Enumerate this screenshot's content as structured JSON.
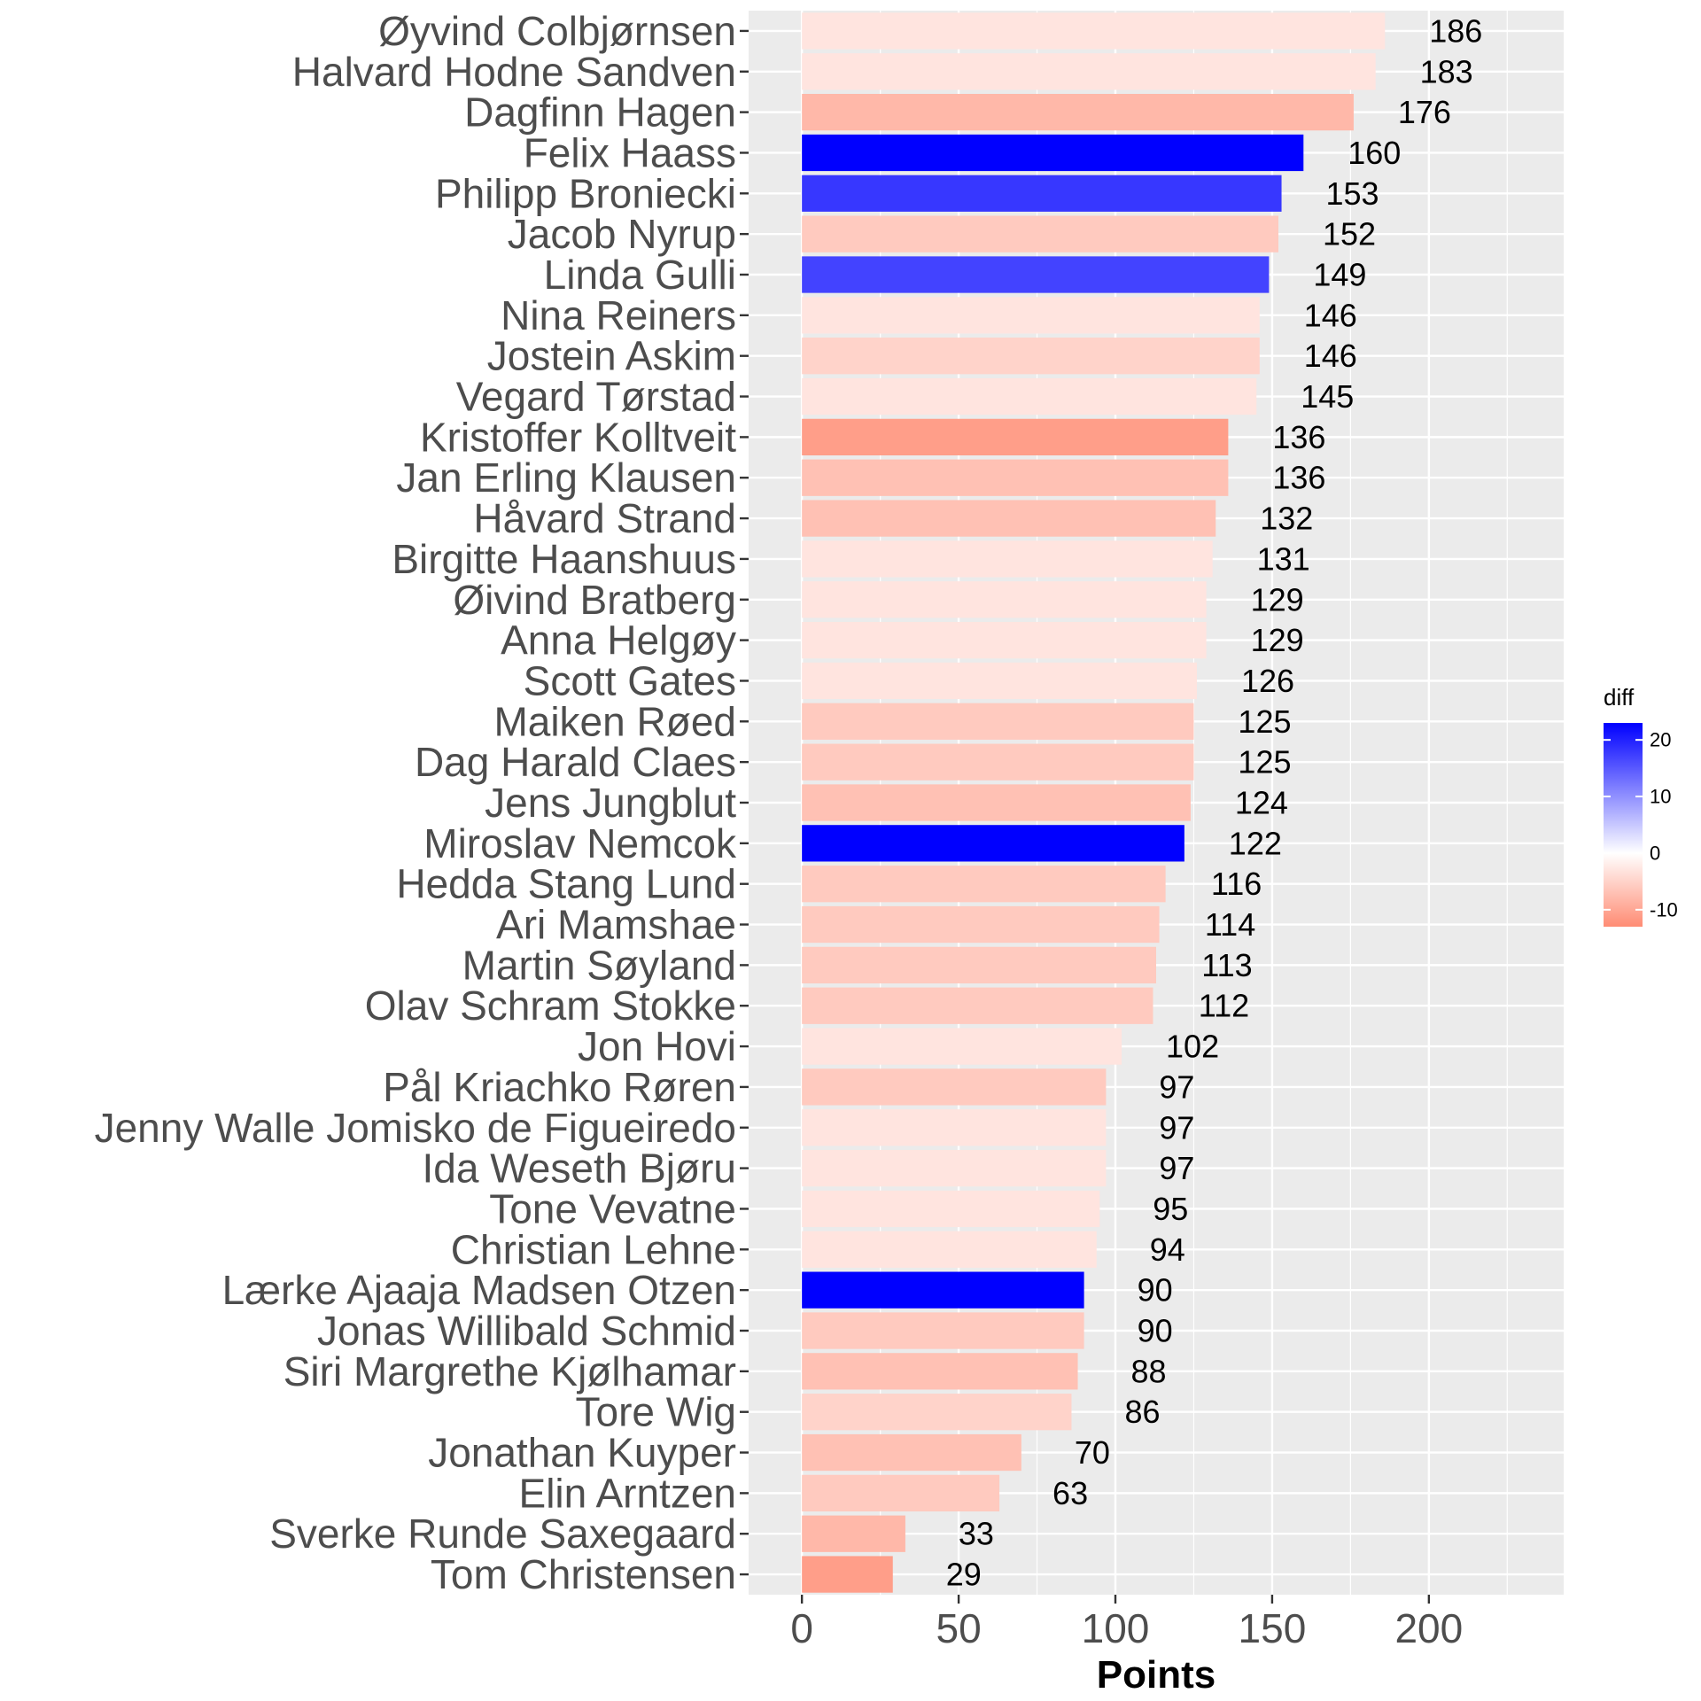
{
  "chart_data": {
    "type": "bar",
    "orientation": "horizontal",
    "xlabel": "Points",
    "ylabel": "",
    "xlim": [
      -17,
      243
    ],
    "x_ticks": [
      0,
      50,
      100,
      150,
      200
    ],
    "grid": true,
    "legend_position": "right",
    "legend": {
      "title": "diff",
      "ticks": [
        20,
        10,
        0,
        -10
      ],
      "range": [
        -13,
        23
      ],
      "colors": {
        "high": "#0000ff",
        "mid": "#ffffff",
        "low": "#ff8c74"
      }
    },
    "categories": [
      "Øyvind Colbjørnsen",
      "Halvard Hodne Sandven",
      "Dagfinn Hagen",
      "Felix Haass",
      "Philipp Broniecki",
      "Jacob Nyrup",
      "Linda Gulli",
      "Nina Reiners",
      "Jostein Askim",
      "Vegard Tørstad",
      "Kristoffer Kolltveit",
      "Jan Erling Klausen",
      "Håvard Strand",
      "Birgitte Haanshuus",
      "Øivind Bratberg",
      "Anna Helgøy",
      "Scott Gates",
      "Maiken Røed",
      "Dag Harald Claes",
      "Jens Jungblut",
      "Miroslav Nemcok",
      "Hedda Stang Lund",
      "Ari Mamshae",
      "Martin Søyland",
      "Olav Schram Stokke",
      "Jon Hovi",
      "Pål Kriachko Røren",
      "Jenny Walle Jomisko de Figueiredo",
      "Ida Weseth Bjøru",
      "Tone Vevatne",
      "Christian Lehne",
      "Lærke Ajaaja Madsen Otzen",
      "Jonas Willibald Schmid",
      "Siri Margrethe Kjølhamar",
      "Tore Wig",
      "Jonathan Kuyper",
      "Elin Arntzen",
      "Sverke Runde Saxegaard",
      "Tom Christensen"
    ],
    "values": [
      186,
      183,
      176,
      160,
      153,
      152,
      149,
      146,
      146,
      145,
      136,
      136,
      132,
      131,
      129,
      129,
      126,
      125,
      125,
      124,
      122,
      116,
      114,
      113,
      112,
      102,
      97,
      97,
      97,
      95,
      94,
      90,
      90,
      88,
      86,
      70,
      63,
      33,
      29
    ],
    "value_labels": [
      "186",
      "183",
      "176",
      "160",
      "153",
      "152",
      "149",
      "146",
      "146",
      "145",
      "136",
      "136",
      "132",
      "131",
      "129",
      "129",
      "126",
      "125",
      "125",
      "124",
      "122",
      "116",
      "114",
      "113",
      "112",
      "102",
      "97",
      "97",
      "97",
      "95",
      "94",
      "90",
      "90",
      "88",
      "86",
      "70",
      "63",
      "33",
      "29"
    ],
    "diff": [
      -3,
      -3,
      -8,
      23,
      18,
      -6,
      17,
      -3,
      -5,
      -3,
      -11,
      -7,
      -7,
      -3,
      -3,
      -3,
      -3,
      -6,
      -6,
      -7,
      23,
      -6,
      -6,
      -6,
      -6,
      -3,
      -6,
      -3,
      -3,
      -3,
      -3,
      23,
      -6,
      -7,
      -5,
      -7,
      -6,
      -8,
      -11
    ]
  }
}
